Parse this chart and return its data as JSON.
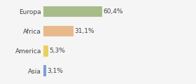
{
  "categories": [
    "Europa",
    "Africa",
    "America",
    "Asia"
  ],
  "values": [
    60.4,
    31.1,
    5.3,
    3.1
  ],
  "labels": [
    "60,4%",
    "31,1%",
    "5,3%",
    "3,1%"
  ],
  "bar_colors": [
    "#a8bc8a",
    "#e8b98a",
    "#e8d060",
    "#7b9fd4"
  ],
  "background_color": "#f5f5f5",
  "xlim": [
    0,
    100
  ],
  "figsize": [
    2.8,
    1.2
  ],
  "dpi": 100
}
